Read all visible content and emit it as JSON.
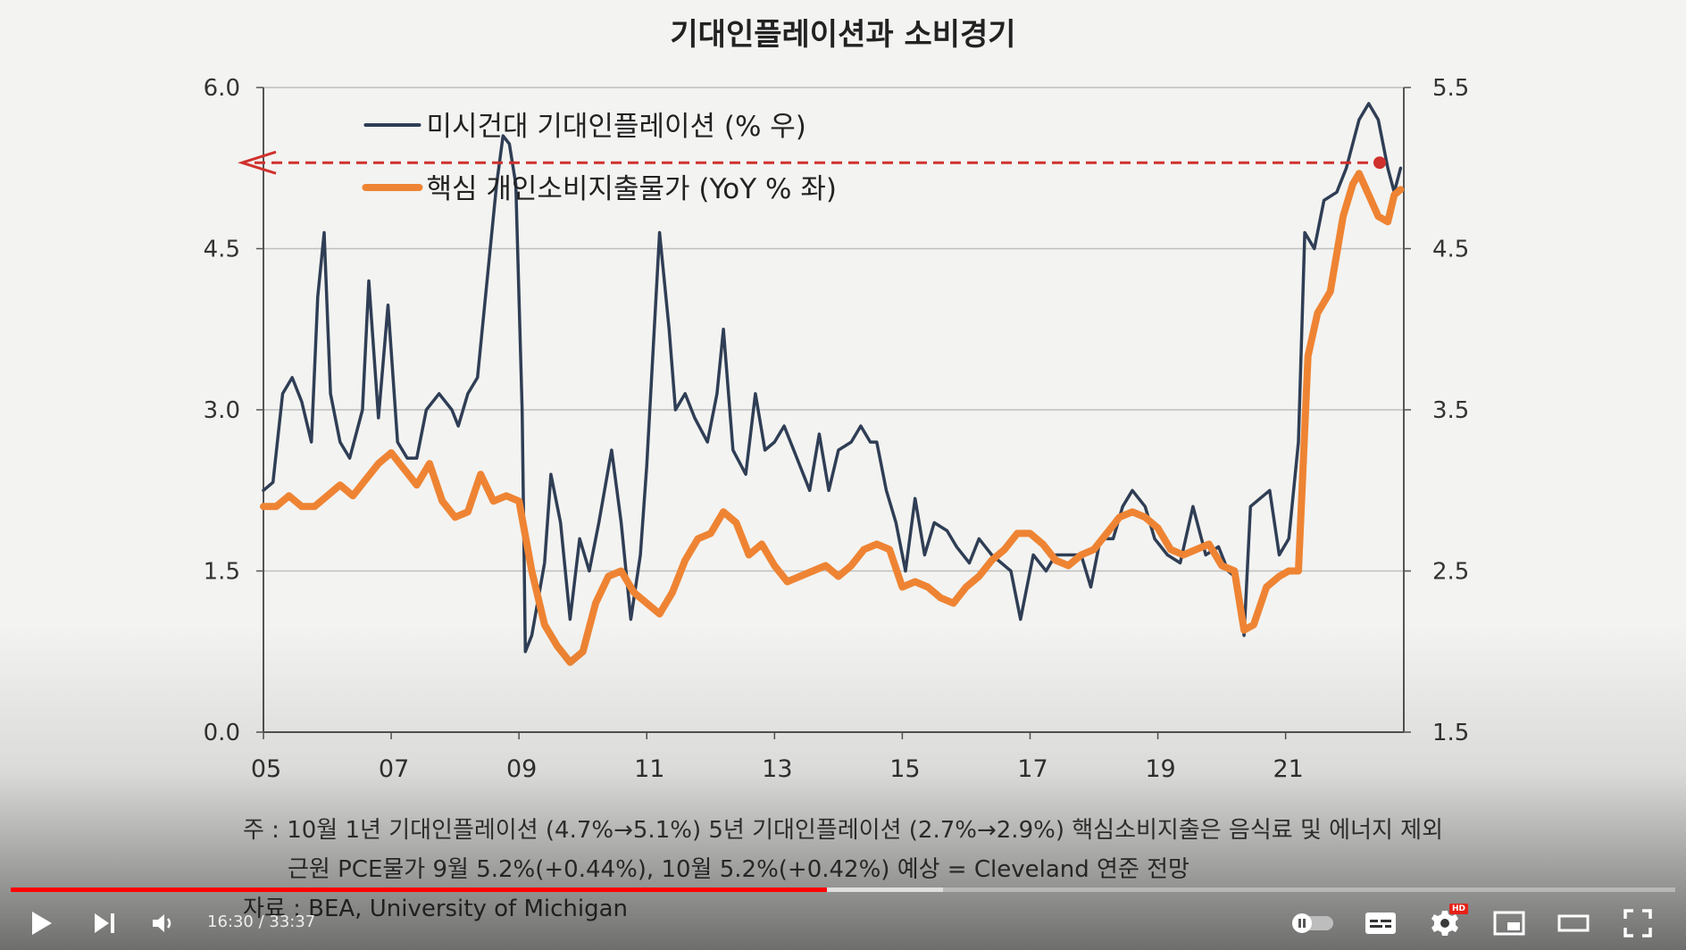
{
  "chart_data": {
    "type": "line",
    "title": "기대인플레이션과 소비경기",
    "x_ticks": [
      "05",
      "07",
      "09",
      "11",
      "13",
      "15",
      "17",
      "19",
      "21"
    ],
    "y_left": {
      "ticks": [
        "0.0",
        "1.5",
        "3.0",
        "4.5",
        "6.0"
      ],
      "range": [
        0,
        6
      ]
    },
    "y_right": {
      "ticks": [
        "1.5",
        "2.5",
        "3.5",
        "4.5",
        "5.5"
      ],
      "range": [
        1.5,
        5.5
      ]
    },
    "grid": true,
    "legend_position": "top-center",
    "reference_line": {
      "value": 5.3,
      "axis": "left",
      "color": "#d0312d",
      "style": "dashed-arrow-left"
    },
    "series": [
      {
        "name": "미시건대 기대인플레이션 (% 우)",
        "axis": "right",
        "color": "#2f3e55",
        "points": [
          [
            2005.0,
            3.0
          ],
          [
            2005.15,
            3.05
          ],
          [
            2005.3,
            3.6
          ],
          [
            2005.45,
            3.7
          ],
          [
            2005.6,
            3.55
          ],
          [
            2005.75,
            3.3
          ],
          [
            2005.85,
            4.2
          ],
          [
            2005.95,
            4.6
          ],
          [
            2006.05,
            3.6
          ],
          [
            2006.2,
            3.3
          ],
          [
            2006.35,
            3.2
          ],
          [
            2006.55,
            3.5
          ],
          [
            2006.65,
            4.3
          ],
          [
            2006.8,
            3.45
          ],
          [
            2006.95,
            4.15
          ],
          [
            2007.1,
            3.3
          ],
          [
            2007.25,
            3.2
          ],
          [
            2007.4,
            3.2
          ],
          [
            2007.55,
            3.5
          ],
          [
            2007.75,
            3.6
          ],
          [
            2007.95,
            3.5
          ],
          [
            2008.05,
            3.4
          ],
          [
            2008.2,
            3.6
          ],
          [
            2008.35,
            3.7
          ],
          [
            2008.5,
            4.3
          ],
          [
            2008.65,
            4.9
          ],
          [
            2008.75,
            5.2
          ],
          [
            2008.85,
            5.15
          ],
          [
            2008.95,
            4.9
          ],
          [
            2009.05,
            3.5
          ],
          [
            2009.1,
            2.0
          ],
          [
            2009.2,
            2.1
          ],
          [
            2009.4,
            2.55
          ],
          [
            2009.5,
            3.1
          ],
          [
            2009.65,
            2.8
          ],
          [
            2009.8,
            2.2
          ],
          [
            2009.95,
            2.7
          ],
          [
            2010.1,
            2.5
          ],
          [
            2010.25,
            2.8
          ],
          [
            2010.45,
            3.25
          ],
          [
            2010.6,
            2.8
          ],
          [
            2010.75,
            2.2
          ],
          [
            2010.9,
            2.6
          ],
          [
            2011.0,
            3.15
          ],
          [
            2011.2,
            4.6
          ],
          [
            2011.35,
            4.0
          ],
          [
            2011.45,
            3.5
          ],
          [
            2011.6,
            3.6
          ],
          [
            2011.75,
            3.45
          ],
          [
            2011.95,
            3.3
          ],
          [
            2012.1,
            3.6
          ],
          [
            2012.2,
            4.0
          ],
          [
            2012.35,
            3.25
          ],
          [
            2012.55,
            3.1
          ],
          [
            2012.7,
            3.6
          ],
          [
            2012.85,
            3.25
          ],
          [
            2013.0,
            3.3
          ],
          [
            2013.15,
            3.4
          ],
          [
            2013.35,
            3.2
          ],
          [
            2013.55,
            3.0
          ],
          [
            2013.7,
            3.35
          ],
          [
            2013.85,
            3.0
          ],
          [
            2014.0,
            3.25
          ],
          [
            2014.2,
            3.3
          ],
          [
            2014.35,
            3.4
          ],
          [
            2014.5,
            3.3
          ],
          [
            2014.6,
            3.3
          ],
          [
            2014.75,
            3.0
          ],
          [
            2014.9,
            2.8
          ],
          [
            2015.05,
            2.5
          ],
          [
            2015.2,
            2.95
          ],
          [
            2015.35,
            2.6
          ],
          [
            2015.5,
            2.8
          ],
          [
            2015.7,
            2.75
          ],
          [
            2015.85,
            2.65
          ],
          [
            2016.05,
            2.55
          ],
          [
            2016.2,
            2.7
          ],
          [
            2016.4,
            2.6
          ],
          [
            2016.55,
            2.55
          ],
          [
            2016.7,
            2.5
          ],
          [
            2016.85,
            2.2
          ],
          [
            2017.05,
            2.6
          ],
          [
            2017.25,
            2.5
          ],
          [
            2017.4,
            2.6
          ],
          [
            2017.6,
            2.6
          ],
          [
            2017.8,
            2.6
          ],
          [
            2017.95,
            2.4
          ],
          [
            2018.1,
            2.7
          ],
          [
            2018.3,
            2.7
          ],
          [
            2018.45,
            2.9
          ],
          [
            2018.6,
            3.0
          ],
          [
            2018.8,
            2.9
          ],
          [
            2018.95,
            2.7
          ],
          [
            2019.15,
            2.6
          ],
          [
            2019.35,
            2.55
          ],
          [
            2019.55,
            2.9
          ],
          [
            2019.75,
            2.6
          ],
          [
            2019.95,
            2.65
          ],
          [
            2020.1,
            2.5
          ],
          [
            2020.25,
            2.45
          ],
          [
            2020.35,
            2.1
          ],
          [
            2020.45,
            2.9
          ],
          [
            2020.6,
            2.95
          ],
          [
            2020.75,
            3.0
          ],
          [
            2020.9,
            2.6
          ],
          [
            2021.05,
            2.7
          ],
          [
            2021.2,
            3.3
          ],
          [
            2021.3,
            4.6
          ],
          [
            2021.45,
            4.5
          ],
          [
            2021.6,
            4.8
          ],
          [
            2021.8,
            4.85
          ],
          [
            2021.95,
            5.0
          ],
          [
            2022.15,
            5.3
          ],
          [
            2022.3,
            5.4
          ],
          [
            2022.45,
            5.3
          ],
          [
            2022.6,
            5.0
          ],
          [
            2022.7,
            4.85
          ],
          [
            2022.8,
            5.0
          ]
        ]
      },
      {
        "name": "핵심 개인소비지출물가 (YoY % 좌)",
        "axis": "left",
        "color": "#ee8433",
        "points": [
          [
            2005.0,
            2.1
          ],
          [
            2005.2,
            2.1
          ],
          [
            2005.4,
            2.2
          ],
          [
            2005.6,
            2.1
          ],
          [
            2005.8,
            2.1
          ],
          [
            2006.0,
            2.2
          ],
          [
            2006.2,
            2.3
          ],
          [
            2006.4,
            2.2
          ],
          [
            2006.6,
            2.35
          ],
          [
            2006.8,
            2.5
          ],
          [
            2007.0,
            2.6
          ],
          [
            2007.2,
            2.45
          ],
          [
            2007.4,
            2.3
          ],
          [
            2007.6,
            2.5
          ],
          [
            2007.8,
            2.15
          ],
          [
            2008.0,
            2.0
          ],
          [
            2008.2,
            2.05
          ],
          [
            2008.4,
            2.4
          ],
          [
            2008.6,
            2.15
          ],
          [
            2008.8,
            2.2
          ],
          [
            2009.0,
            2.15
          ],
          [
            2009.2,
            1.5
          ],
          [
            2009.4,
            1.0
          ],
          [
            2009.6,
            0.8
          ],
          [
            2009.8,
            0.65
          ],
          [
            2010.0,
            0.75
          ],
          [
            2010.2,
            1.2
          ],
          [
            2010.4,
            1.45
          ],
          [
            2010.6,
            1.5
          ],
          [
            2010.8,
            1.3
          ],
          [
            2011.0,
            1.2
          ],
          [
            2011.2,
            1.1
          ],
          [
            2011.4,
            1.3
          ],
          [
            2011.6,
            1.6
          ],
          [
            2011.8,
            1.8
          ],
          [
            2012.0,
            1.85
          ],
          [
            2012.2,
            2.05
          ],
          [
            2012.4,
            1.95
          ],
          [
            2012.6,
            1.65
          ],
          [
            2012.8,
            1.75
          ],
          [
            2013.0,
            1.55
          ],
          [
            2013.2,
            1.4
          ],
          [
            2013.4,
            1.45
          ],
          [
            2013.6,
            1.5
          ],
          [
            2013.8,
            1.55
          ],
          [
            2014.0,
            1.45
          ],
          [
            2014.2,
            1.55
          ],
          [
            2014.4,
            1.7
          ],
          [
            2014.6,
            1.75
          ],
          [
            2014.8,
            1.7
          ],
          [
            2015.0,
            1.35
          ],
          [
            2015.2,
            1.4
          ],
          [
            2015.4,
            1.35
          ],
          [
            2015.6,
            1.25
          ],
          [
            2015.8,
            1.2
          ],
          [
            2016.0,
            1.35
          ],
          [
            2016.2,
            1.45
          ],
          [
            2016.4,
            1.6
          ],
          [
            2016.6,
            1.7
          ],
          [
            2016.8,
            1.85
          ],
          [
            2017.0,
            1.85
          ],
          [
            2017.2,
            1.75
          ],
          [
            2017.4,
            1.6
          ],
          [
            2017.6,
            1.55
          ],
          [
            2017.8,
            1.65
          ],
          [
            2018.0,
            1.7
          ],
          [
            2018.2,
            1.85
          ],
          [
            2018.4,
            2.0
          ],
          [
            2018.6,
            2.05
          ],
          [
            2018.8,
            2.0
          ],
          [
            2019.0,
            1.9
          ],
          [
            2019.2,
            1.7
          ],
          [
            2019.4,
            1.65
          ],
          [
            2019.6,
            1.7
          ],
          [
            2019.8,
            1.75
          ],
          [
            2020.0,
            1.55
          ],
          [
            2020.2,
            1.5
          ],
          [
            2020.35,
            0.95
          ],
          [
            2020.5,
            1.0
          ],
          [
            2020.7,
            1.35
          ],
          [
            2020.9,
            1.45
          ],
          [
            2021.05,
            1.5
          ],
          [
            2021.2,
            1.5
          ],
          [
            2021.35,
            3.5
          ],
          [
            2021.5,
            3.9
          ],
          [
            2021.7,
            4.1
          ],
          [
            2021.9,
            4.8
          ],
          [
            2022.05,
            5.1
          ],
          [
            2022.15,
            5.2
          ],
          [
            2022.3,
            5.0
          ],
          [
            2022.45,
            4.8
          ],
          [
            2022.6,
            4.75
          ],
          [
            2022.7,
            5.0
          ],
          [
            2022.8,
            5.05
          ]
        ]
      }
    ]
  },
  "notes": {
    "line1": "주 : 10월 1년 기대인플레이션 (4.7%→5.1%) 5년 기대인플레이션 (2.7%→2.9%) 핵심소비지출은 음식료 및 에너지 제외",
    "line2": "근원 PCE물가 9월 5.2%(+0.44%), 10월 5.2%(+0.42%) 예상 = Cleveland 연준 전망",
    "source": "자료 : BEA, University of Michigan"
  },
  "player": {
    "current_time": "16:30",
    "duration": "33:37",
    "time_display": "16:30 / 33:37",
    "progress": 0.4906,
    "buffered": 0.56,
    "accent_color": "#ff0000",
    "quality_badge": "HD",
    "controls": [
      "play-icon",
      "next-icon",
      "volume-icon",
      "autoplay-toggle-icon",
      "subtitles-icon",
      "settings-icon",
      "miniplayer-icon",
      "theater-icon",
      "fullscreen-icon"
    ]
  }
}
